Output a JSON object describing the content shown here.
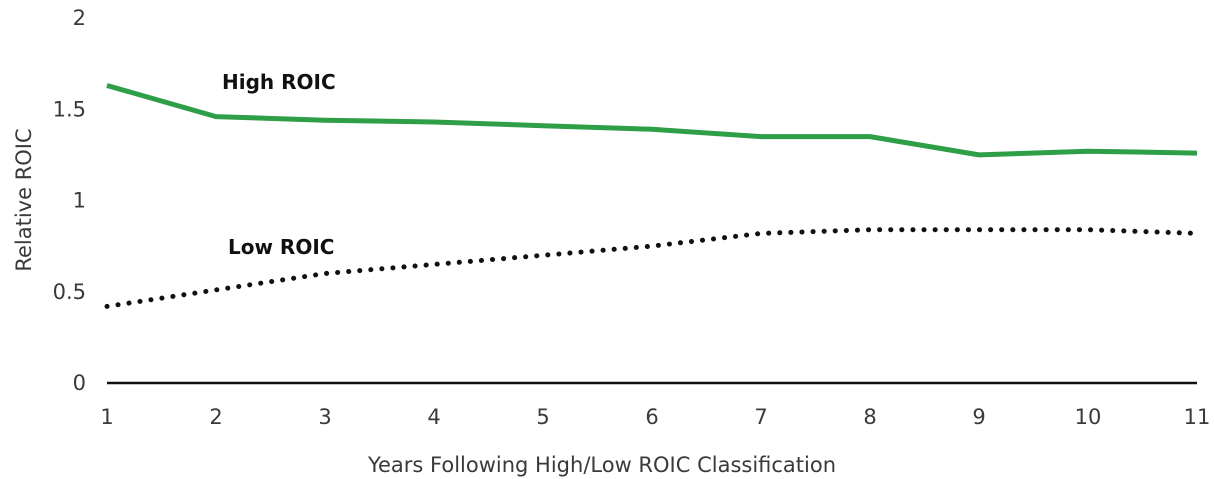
{
  "chart_data": {
    "type": "line",
    "title": "",
    "xlabel": "Years Following High/Low ROIC Classification",
    "ylabel": "Relative ROIC",
    "x": [
      1,
      2,
      3,
      4,
      5,
      6,
      7,
      8,
      9,
      10,
      11
    ],
    "xlim": [
      1,
      11
    ],
    "ylim": [
      0,
      2
    ],
    "yticks": [
      0,
      0.5,
      1,
      1.5,
      2
    ],
    "ytick_labels": [
      "0",
      "0.5",
      "1",
      "1.5",
      "2"
    ],
    "xtick_labels": [
      "1",
      "2",
      "3",
      "4",
      "5",
      "6",
      "7",
      "8",
      "9",
      "10",
      "11"
    ],
    "grid": false,
    "series": [
      {
        "name": "High ROIC",
        "values": [
          1.63,
          1.46,
          1.44,
          1.43,
          1.41,
          1.39,
          1.35,
          1.35,
          1.25,
          1.27,
          1.26
        ],
        "color": "#2e9e47",
        "style": "solid"
      },
      {
        "name": "Low ROIC",
        "values": [
          0.42,
          0.51,
          0.6,
          0.65,
          0.7,
          0.75,
          0.82,
          0.84,
          0.84,
          0.84,
          0.82
        ],
        "color": "#111111",
        "style": "dotted"
      }
    ]
  }
}
